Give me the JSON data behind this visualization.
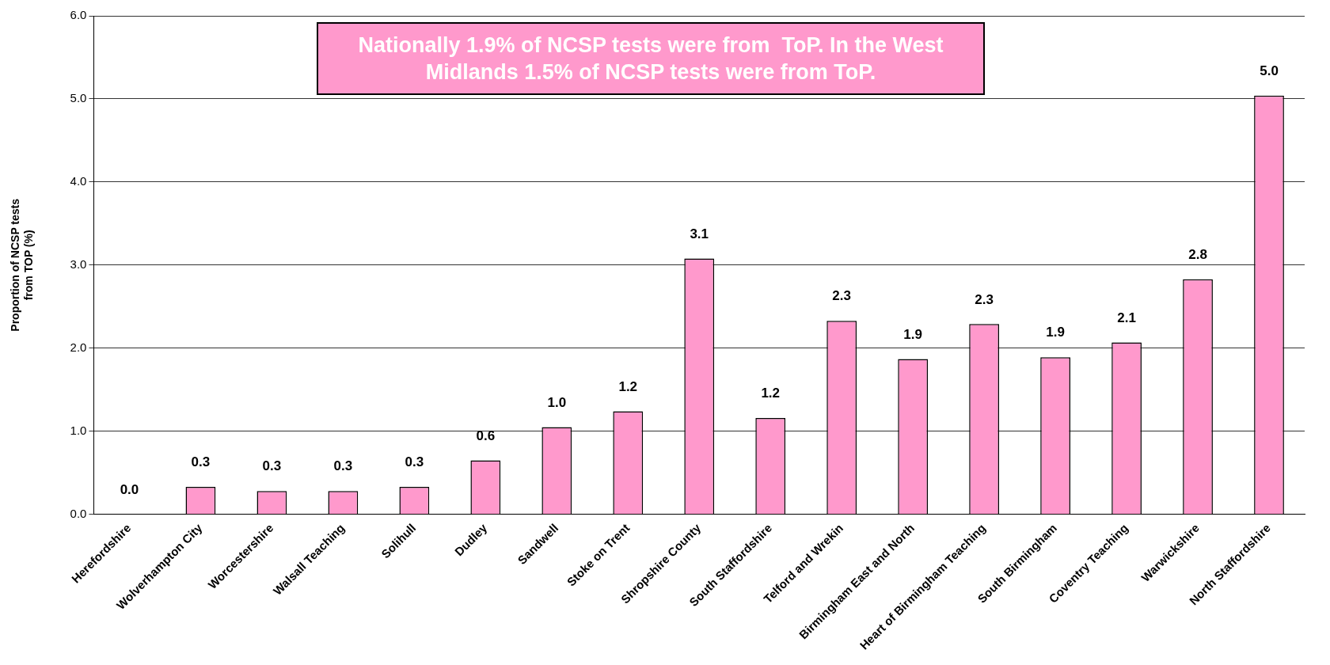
{
  "chart_data": {
    "type": "bar",
    "ylabel": "Proportion of NCSP tests from TOP (%)",
    "annotations": [
      "Nationally 1.9% of NCSP tests were from  ToP. In the West Midlands 1.5% of NCSP tests were from ToP."
    ],
    "categories": [
      "Herefordshire",
      "Wolverhampton City",
      "Worcestershire",
      "Walsall Teaching",
      "Solihull",
      "Dudley",
      "Sandwell",
      "Stoke on Trent",
      "Shropshire County",
      "South Staffordshire",
      "Telford and Wrekin",
      "Birmingham East and North",
      "Heart of Birmingham Teaching",
      "South Birmingham",
      "Coventry Teaching",
      "Warwickshire",
      "North Staffordshire"
    ],
    "values": [
      0,
      0.33,
      0.28,
      0.28,
      0.33,
      0.65,
      1.05,
      1.24,
      3.08,
      1.16,
      2.33,
      1.87,
      2.29,
      1.89,
      2.07,
      2.83,
      5.04
    ],
    "value_labels": [
      "0.0",
      "0.3",
      "0.3",
      "0.3",
      "0.3",
      "0.6",
      "1.0",
      "1.2",
      "3.1",
      "1.2",
      "2.3",
      "1.9",
      "2.3",
      "1.9",
      "2.1",
      "2.8",
      "5.0"
    ],
    "color": "#ff99cc",
    "ylim": [
      0,
      6
    ],
    "yticks": [
      {
        "value": 0,
        "label": "0.0"
      },
      {
        "value": 1,
        "label": "1.0"
      },
      {
        "value": 2,
        "label": "2.0"
      },
      {
        "value": 3,
        "label": "3.0"
      },
      {
        "value": 4,
        "label": "4.0"
      },
      {
        "value": 5,
        "label": "5.0"
      },
      {
        "value": 6,
        "label": "6.0"
      }
    ],
    "grid": "y"
  }
}
